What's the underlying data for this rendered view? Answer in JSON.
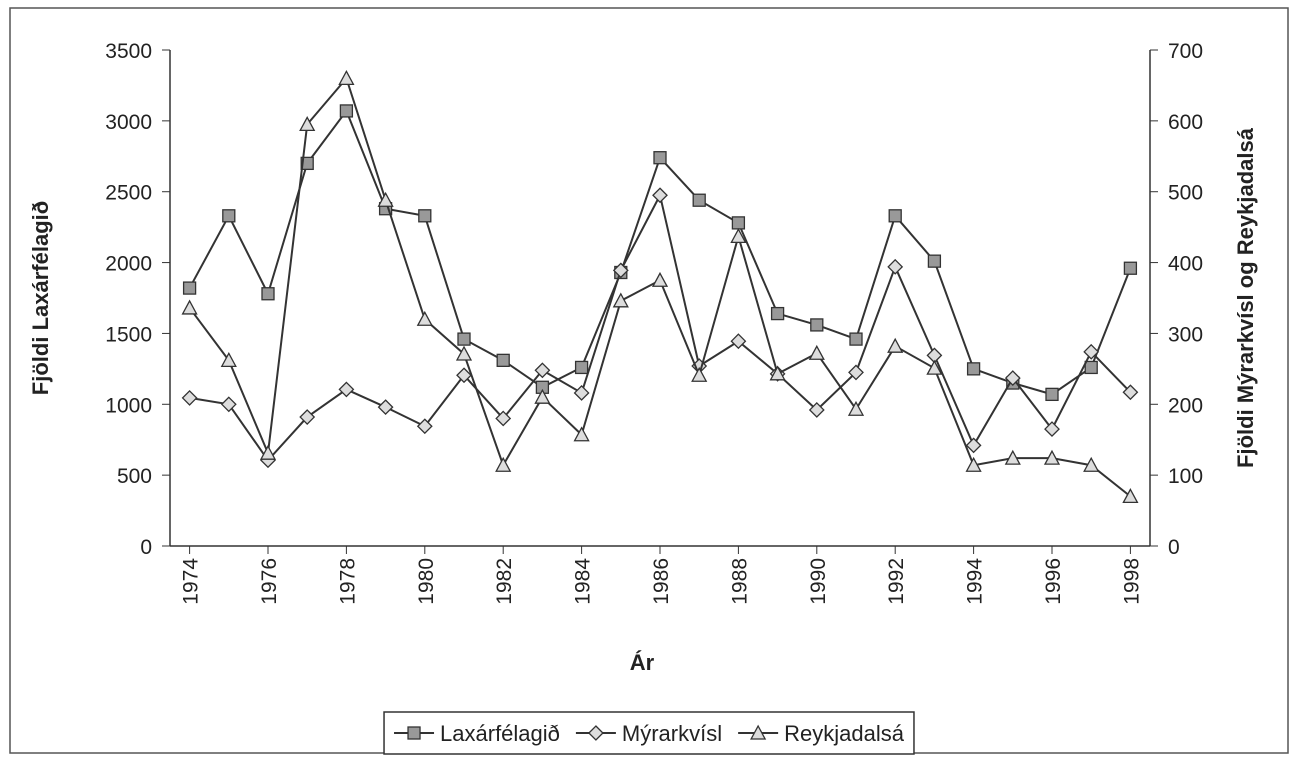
{
  "chart_data": {
    "type": "line",
    "x": [
      1974,
      1975,
      1976,
      1977,
      1978,
      1979,
      1980,
      1981,
      1982,
      1983,
      1984,
      1985,
      1986,
      1987,
      1988,
      1989,
      1990,
      1991,
      1992,
      1993,
      1994,
      1995,
      1996,
      1997,
      1998
    ],
    "xlabel": "Ár",
    "ylabel": "Fjöldi  Laxárfélagið",
    "y2label": "Fjöldi  Mýrarkvísl og Reykjadalsá",
    "xlim": [
      1973.5,
      1998.5
    ],
    "xticks": [
      1974,
      1976,
      1978,
      1980,
      1982,
      1984,
      1986,
      1988,
      1990,
      1992,
      1994,
      1996,
      1998
    ],
    "ylim": [
      0,
      3500
    ],
    "yticks": [
      0,
      500,
      1000,
      1500,
      2000,
      2500,
      3000,
      3500
    ],
    "y2lim": [
      0,
      700
    ],
    "y2ticks": [
      0,
      100,
      200,
      300,
      400,
      500,
      600,
      700
    ],
    "legend": "bottom",
    "series": [
      {
        "name": "Laxárfélagið",
        "color": "#333333",
        "marker": "square",
        "values": [
          1820,
          2330,
          1780,
          2700,
          3070,
          2380,
          2330,
          1460,
          1310,
          1120,
          1260,
          1930,
          2740,
          2440,
          2280,
          1640,
          1560,
          1460,
          2330,
          2010,
          1250,
          1150,
          1070,
          1260,
          1960
        ]
      },
      {
        "name": "Mýrarkvísl",
        "color": "#333333",
        "marker": "diamond",
        "axis": "y2",
        "values": [
          209,
          200,
          121,
          182,
          221,
          196,
          169,
          241,
          180,
          248,
          216,
          389,
          495,
          254,
          289,
          243,
          192,
          245,
          394,
          269,
          142,
          237,
          165,
          274,
          217
        ]
      },
      {
        "name": "Reykjadalsá",
        "color": "#333333",
        "marker": "triangle",
        "axis": "y2",
        "values": [
          336,
          262,
          131,
          595,
          660,
          488,
          320,
          271,
          114,
          210,
          157,
          346,
          375,
          241,
          437,
          243,
          272,
          193,
          282,
          251,
          114,
          124,
          124,
          114,
          70
        ]
      }
    ]
  }
}
